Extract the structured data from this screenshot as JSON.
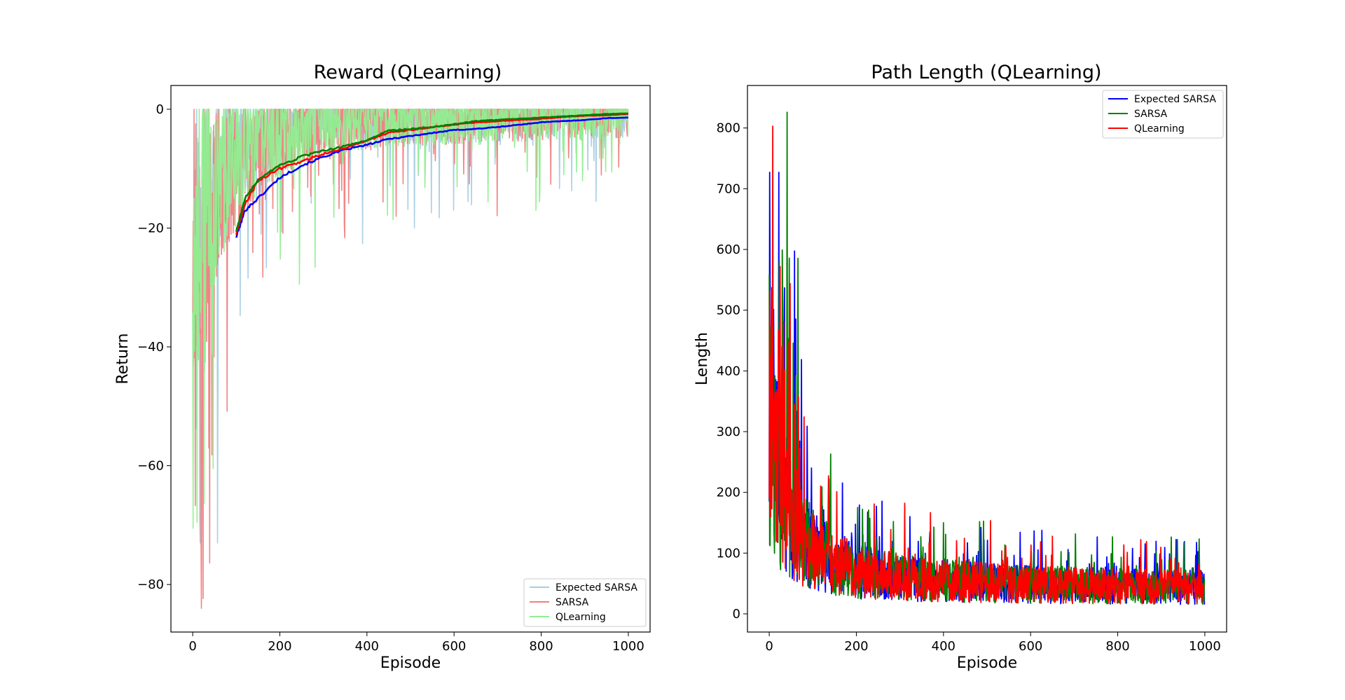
{
  "chart_data": [
    {
      "type": "line",
      "title": "Reward (QLearning)",
      "xlabel": "Episode",
      "ylabel": "Return",
      "xlim": [
        -50,
        1050
      ],
      "ylim": [
        -88,
        4
      ],
      "xticks": [
        0,
        200,
        400,
        600,
        800,
        1000
      ],
      "xtick_labels": [
        "0",
        "200",
        "400",
        "600",
        "800",
        "1000"
      ],
      "yticks": [
        0,
        -20,
        -40,
        -60,
        -80
      ],
      "ytick_labels": [
        "0",
        "−20",
        "−40",
        "−60",
        "−80"
      ],
      "legend": {
        "position": "lower right",
        "entries": [
          "Expected SARSA",
          "SARSA",
          "QLearning"
        ]
      },
      "series": [
        {
          "name": "Expected SARSA",
          "color": "#a6cee3",
          "kind": "raw",
          "episodes": 1000,
          "approx_start": -48,
          "approx_plateau": -1,
          "approx_min": -73,
          "approx_max": 0
        },
        {
          "name": "SARSA",
          "color": "#f08080",
          "kind": "raw",
          "episodes": 1000,
          "approx_start": -48,
          "approx_plateau": -1,
          "approx_min": -84,
          "approx_max": 0
        },
        {
          "name": "QLearning",
          "color": "#90ee90",
          "kind": "raw",
          "episodes": 1000,
          "approx_start": -48,
          "approx_plateau": -1,
          "approx_min": -82,
          "approx_max": 0
        }
      ],
      "moving_averages": [
        {
          "color": "#0000ff",
          "x": [
            100,
            120,
            150,
            200,
            250,
            300,
            350,
            400,
            450,
            500,
            550,
            600,
            650,
            700,
            750,
            800,
            850,
            900,
            950,
            1000
          ],
          "y": [
            -21.5,
            -17,
            -15,
            -11.5,
            -9.5,
            -8,
            -6.8,
            -6,
            -5,
            -4.5,
            -4,
            -3.5,
            -3.3,
            -3,
            -2.6,
            -2.2,
            -2,
            -1.8,
            -1.5,
            -1.4
          ]
        },
        {
          "color": "#ff0000",
          "x": [
            100,
            120,
            150,
            200,
            250,
            300,
            350,
            400,
            450,
            500,
            550,
            600,
            650,
            700,
            750,
            800,
            850,
            900,
            950,
            1000
          ],
          "y": [
            -21,
            -16,
            -12,
            -10,
            -8.8,
            -7.5,
            -6.5,
            -5.3,
            -4,
            -3.5,
            -3,
            -2.6,
            -2.2,
            -2,
            -1.8,
            -1.6,
            -1.3,
            -1.1,
            -1,
            -0.8
          ]
        },
        {
          "color": "#008000",
          "x": [
            100,
            120,
            150,
            200,
            250,
            300,
            350,
            400,
            450,
            500,
            550,
            600,
            650,
            700,
            750,
            800,
            850,
            900,
            950,
            1000
          ],
          "y": [
            -20.5,
            -15,
            -12,
            -9.5,
            -8,
            -7,
            -6.2,
            -5.2,
            -3.6,
            -3.3,
            -3,
            -2.5,
            -2,
            -1.8,
            -1.6,
            -1.4,
            -1.2,
            -1,
            -0.8,
            -0.7
          ]
        }
      ]
    },
    {
      "type": "line",
      "title": "Path Length (QLearning)",
      "xlabel": "Episode",
      "ylabel": "Length",
      "xlim": [
        -50,
        1050
      ],
      "ylim": [
        -30,
        870
      ],
      "xticks": [
        0,
        200,
        400,
        600,
        800,
        1000
      ],
      "xtick_labels": [
        "0",
        "200",
        "400",
        "600",
        "800",
        "1000"
      ],
      "yticks": [
        0,
        100,
        200,
        300,
        400,
        500,
        600,
        700,
        800
      ],
      "ytick_labels": [
        "0",
        "100",
        "200",
        "300",
        "400",
        "500",
        "600",
        "700",
        "800"
      ],
      "legend": {
        "position": "upper right",
        "entries": [
          "Expected SARSA",
          "SARSA",
          "QLearning"
        ]
      },
      "series": [
        {
          "name": "Expected SARSA",
          "color": "#0000ff",
          "episodes": 1000,
          "approx_start": 250,
          "approx_plateau": 45,
          "approx_max": 727,
          "approx_min": 13
        },
        {
          "name": "SARSA",
          "color": "#008000",
          "episodes": 1000,
          "approx_start": 250,
          "approx_plateau": 45,
          "approx_max": 826,
          "approx_min": 13
        },
        {
          "name": "QLearning",
          "color": "#ff0000",
          "episodes": 1000,
          "approx_start": 250,
          "approx_plateau": 45,
          "approx_max": 803,
          "approx_min": 13
        }
      ]
    }
  ]
}
